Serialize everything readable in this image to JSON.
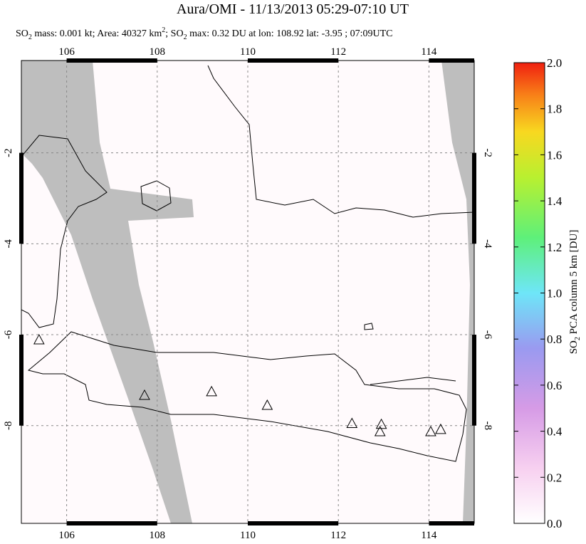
{
  "chart_data": {
    "type": "map",
    "title": "Aura/OMI - 11/13/2013 05:29-07:10 UT",
    "subtitle_parts": [
      "SO",
      "2",
      " mass: 0.001 kt; Area: 40327 km",
      "2",
      "; SO",
      "2",
      " max: 0.32 DU at lon: 108.92 lat: -3.95 ; 07:09UTC"
    ],
    "xlim": [
      105,
      115
    ],
    "ylim": [
      -10.15,
      0.03
    ],
    "xticks": [
      106,
      108,
      110,
      112,
      114
    ],
    "yticks": [
      -2,
      -4,
      -6,
      -8
    ],
    "grid": true,
    "volcanoes": {
      "lon": [
        105.39,
        107.72,
        109.2,
        110.43,
        112.3,
        112.95,
        112.92,
        114.04,
        114.26
      ],
      "lat": [
        -6.11,
        -7.33,
        -7.25,
        -7.55,
        -7.95,
        -7.97,
        -8.13,
        -8.13,
        -8.08
      ]
    },
    "colorbar": {
      "label_parts": [
        "SO",
        "2",
        " PCA column 5 km [DU]"
      ],
      "lim": [
        0,
        2
      ],
      "ticks": [
        {
          "value": 0,
          "label": "0.0"
        },
        0.2,
        0.4,
        0.6,
        0.8,
        {
          "value": 1,
          "label": "1.0"
        },
        1.2,
        1.4,
        1.6,
        1.8,
        {
          "value": 2,
          "label": "2.0"
        }
      ]
    }
  }
}
